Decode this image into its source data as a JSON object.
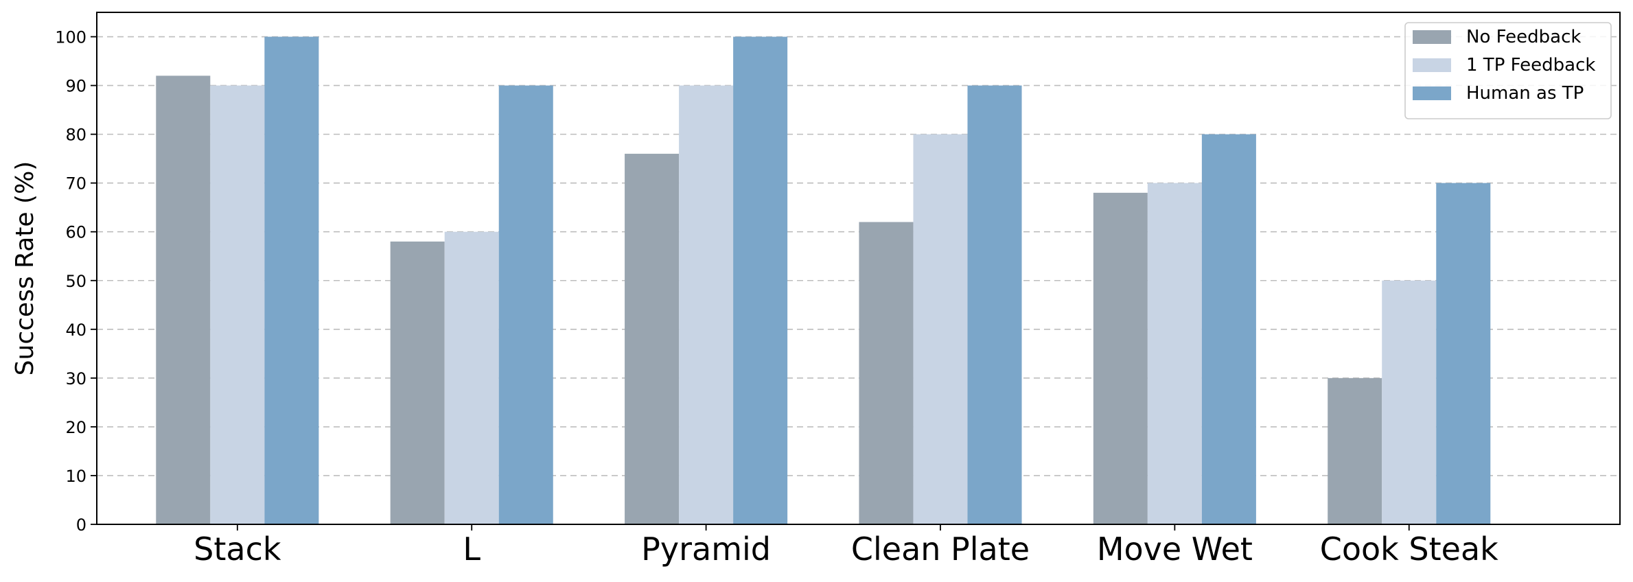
{
  "chart_data": {
    "type": "bar",
    "categories": [
      "Stack",
      "L",
      "Pyramid",
      "Clean Plate",
      "Move Wet",
      "Cook Steak"
    ],
    "series": [
      {
        "name": "No Feedback",
        "color": "#99a5b0",
        "values": [
          92,
          58,
          76,
          62,
          68,
          30
        ]
      },
      {
        "name": "1 TP Feedback",
        "color": "#c8d4e4",
        "values": [
          90,
          60,
          90,
          80,
          70,
          50
        ]
      },
      {
        "name": "Human as TP",
        "color": "#7ba6c9",
        "values": [
          100,
          90,
          100,
          90,
          80,
          70
        ]
      }
    ],
    "title": "",
    "xlabel": "",
    "ylabel": "Success Rate (%)",
    "ylim": [
      0,
      105
    ],
    "yticks": [
      0,
      10,
      20,
      30,
      40,
      50,
      60,
      70,
      80,
      90,
      100
    ],
    "grid": "y-dashed",
    "legend_position": "top-right"
  }
}
